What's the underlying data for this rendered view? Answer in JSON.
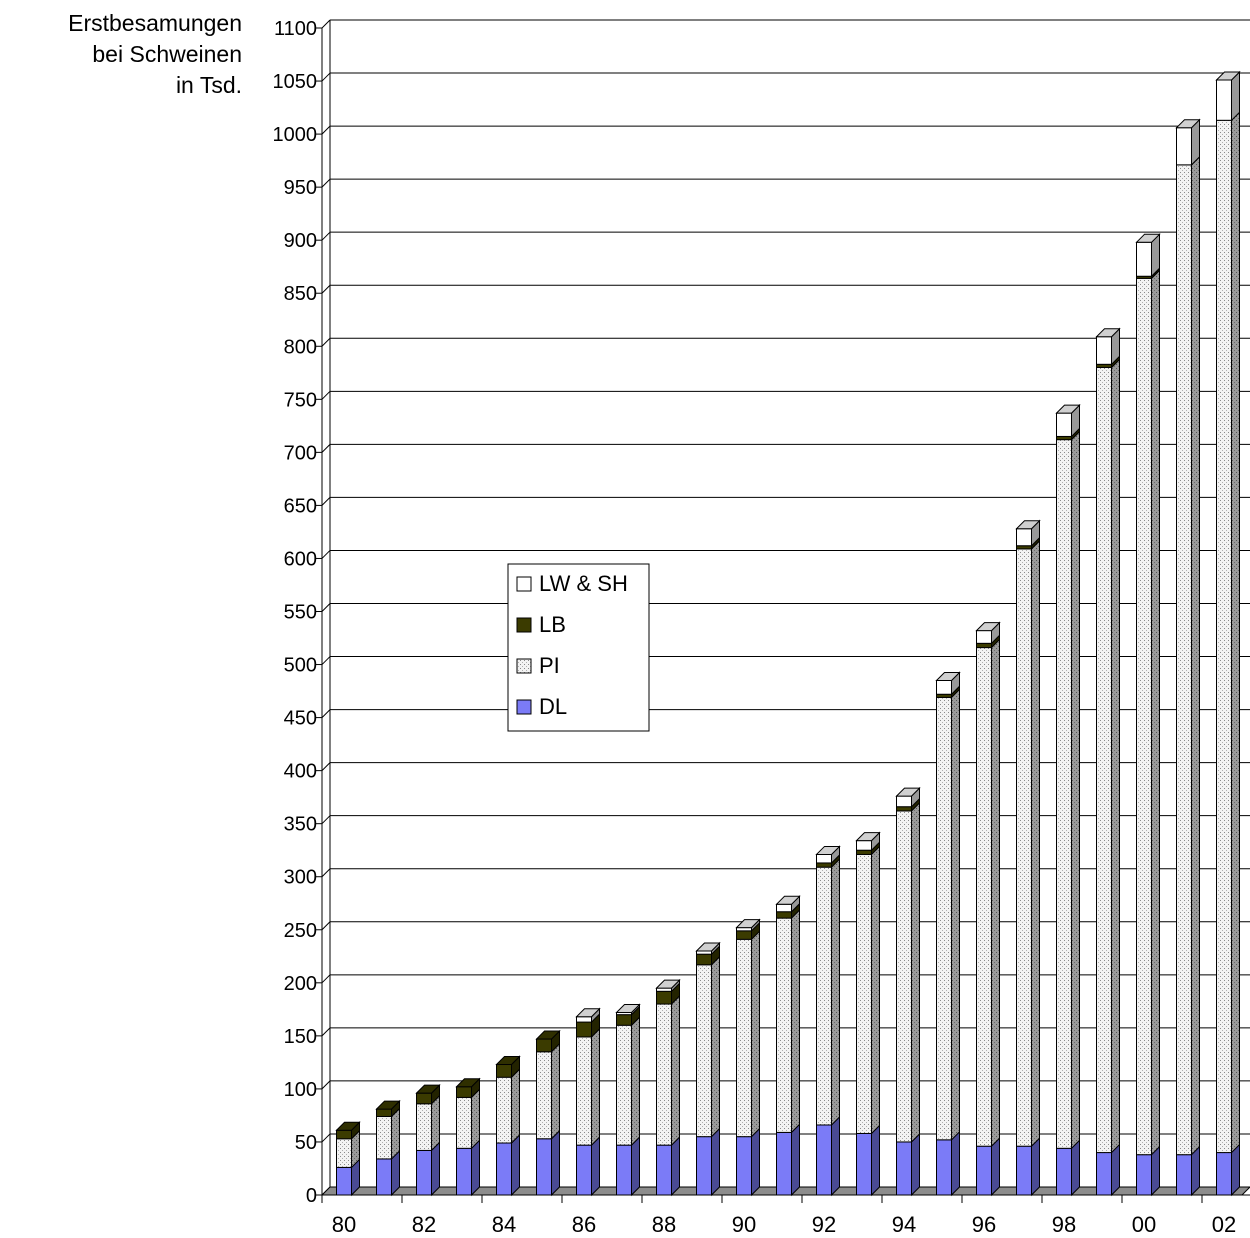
{
  "chart_data": {
    "type": "bar",
    "stacked": true,
    "three_d": true,
    "ylabel_lines": [
      "Erstbesamungen",
      "bei Schweinen",
      "in Tsd."
    ],
    "ylim": [
      0,
      1100
    ],
    "ytick_step": 50,
    "yticks": [
      "0",
      "50",
      "100",
      "150",
      "200",
      "250",
      "300",
      "350",
      "400",
      "450",
      "500",
      "550",
      "600",
      "650",
      "700",
      "750",
      "800",
      "850",
      "900",
      "950",
      "1000",
      "1050",
      "1100"
    ],
    "categories": [
      "80",
      "81",
      "82",
      "83",
      "84",
      "85",
      "86",
      "87",
      "88",
      "89",
      "90",
      "91",
      "92",
      "93",
      "94",
      "95",
      "96",
      "97",
      "98",
      "99",
      "00",
      "01",
      "02"
    ],
    "xtick_labels": [
      "80",
      "82",
      "84",
      "86",
      "88",
      "90",
      "92",
      "94",
      "96",
      "98",
      "00",
      "02"
    ],
    "grid": true,
    "legend_position": "center-left",
    "series": [
      {
        "name": "DL",
        "color": "#7b7bf7",
        "pattern": "solid",
        "values": [
          26,
          34,
          42,
          44,
          49,
          53,
          47,
          47,
          47,
          55,
          55,
          59,
          66,
          58,
          50,
          52,
          46,
          46,
          44,
          40,
          38,
          38,
          40
        ]
      },
      {
        "name": "PI",
        "color": "#ededed",
        "pattern": "dots",
        "values": [
          27,
          40,
          44,
          48,
          62,
          82,
          102,
          113,
          133,
          162,
          186,
          202,
          243,
          263,
          312,
          417,
          470,
          563,
          668,
          740,
          826,
          933,
          973
        ]
      },
      {
        "name": "LB",
        "color": "#3b3b00",
        "pattern": "solid",
        "values": [
          8,
          7,
          10,
          10,
          12,
          12,
          14,
          10,
          12,
          10,
          8,
          6,
          4,
          4,
          4,
          3,
          4,
          3,
          3,
          3,
          2,
          0,
          0
        ]
      },
      {
        "name": "LW & SH",
        "color": "#ffffff",
        "pattern": "solid",
        "values": [
          0,
          0,
          0,
          0,
          0,
          0,
          5,
          2,
          3,
          3,
          3,
          7,
          8,
          9,
          10,
          13,
          12,
          16,
          22,
          26,
          32,
          35,
          38
        ]
      }
    ],
    "legend_order": [
      "LW & SH",
      "LB",
      "PI",
      "DL"
    ]
  }
}
